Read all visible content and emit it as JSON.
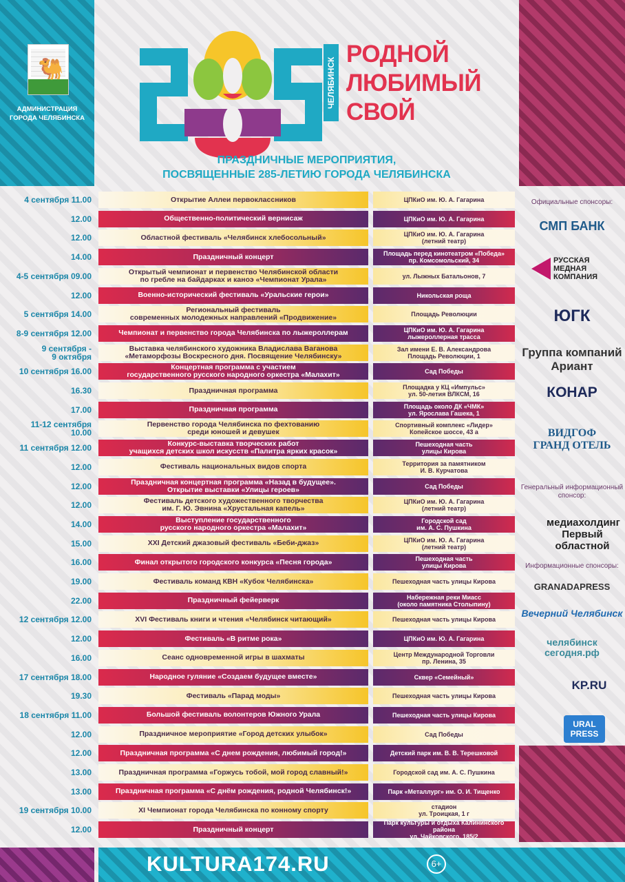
{
  "header": {
    "admin_label": "АДМИНИСТРАЦИЯ\nГОРОДА ЧЕЛЯБИНСКА",
    "logo_number": "285",
    "city_vertical": "ЧЕЛЯБИНСК",
    "slogan": [
      "РОДНОЙ",
      "ЛЮБИМЫЙ",
      "СВОЙ"
    ],
    "subtitle_line1": "ПРАЗДНИЧНЫЕ МЕРОПРИЯТИЯ,",
    "subtitle_line2": "ПОСВЯЩЕННЫЕ 285-ЛЕТИЮ ГОРОДА ЧЕЛЯБИНСКА"
  },
  "colors": {
    "cyan": "#1fa9c4",
    "crimson": "#da2a4c",
    "purple": "#5a2a6c",
    "yellow": "#f6c52a",
    "slogan_red": "#e2334f"
  },
  "events": [
    {
      "time": "4 сентября 11.00",
      "event": "Открытие Аллеи первоклассников",
      "venue": "ЦПКиО им. Ю. А. Гагарина"
    },
    {
      "time": "12.00",
      "event": "Общественно-политический вернисаж",
      "venue": "ЦПКиО им. Ю. А. Гагарина"
    },
    {
      "time": "12.00",
      "event": "Областной фестиваль «Челябинск хлебосольный»",
      "venue": "ЦПКиО им. Ю. А. Гагарина\n(летний театр)"
    },
    {
      "time": "14.00",
      "event": "Праздничный концерт",
      "venue": "Площадь перед кинотеатром «Победа»\nпр. Комсомольский, 34"
    },
    {
      "time": "4-5 сентября 09.00",
      "event": "Открытый чемпионат и первенство Челябинской области\nпо гребле на байдарках и каноэ «Чемпионат Урала»",
      "venue": "ул. Лыжных Батальонов, 7"
    },
    {
      "time": "12.00",
      "event": "Военно-исторический фестиваль «Уральские герои»",
      "venue": "Никольская роща"
    },
    {
      "time": "5 сентября 14.00",
      "event": "Региональный фестиваль\nсовременных молодежных направлений «Продвижение»",
      "venue": "Площадь Революции"
    },
    {
      "time": "8-9 сентября 12.00",
      "event": "Чемпионат и первенство города Челябинска по лыжероллерам",
      "venue": "ЦПКиО им. Ю. А. Гагарина\nлыжероллерная трасса"
    },
    {
      "time": "9 сентября -\n9 октября",
      "event": "Выставка челябинского художника Владислава Ваганова\n«Метаморфозы Воскресного дня. Посвящение Челябинску»",
      "venue": "Зал имени Е. В. Александрова\nПлощадь Революции, 1"
    },
    {
      "time": "10 сентября 16.00",
      "event": "Концертная программа с участием\nгосударственного русского народного оркестра «Малахит»",
      "venue": "Сад Победы"
    },
    {
      "time": "16.30",
      "event": "Праздничная программа",
      "venue": "Площадка у КЦ «Импульс»\nул. 50-летия ВЛКСМ, 16"
    },
    {
      "time": "17.00",
      "event": "Праздничная программа",
      "venue": "Площадь около ДК «ЧМК»\nул. Ярослава Гашека, 1"
    },
    {
      "time": "11-12 сентября\n10.00",
      "event": "Первенство города Челябинска по фехтованию\nсреди юношей и девушек",
      "venue": "Спортивный комплекс «Лидер»\nКопейское шоссе, 43 а"
    },
    {
      "time": "11 сентября 12.00",
      "event": "Конкурс-выставка творческих работ\nучащихся детских школ искусств «Палитра ярких красок»",
      "venue": "Пешеходная часть\nулицы Кирова"
    },
    {
      "time": "12.00",
      "event": "Фестиваль национальных видов спорта",
      "venue": "Территория за памятником\nИ. В. Курчатова"
    },
    {
      "time": "12.00",
      "event": "Праздничная концертная программа «Назад в будущее».\nОткрытие выставки «Улицы героев»",
      "venue": "Сад Победы"
    },
    {
      "time": "12.00",
      "event": "Фестиваль детского художественного творчества\nим. Г. Ю. Эвнина «Хрустальная капель»",
      "venue": "ЦПКиО им. Ю. А. Гагарина\n(летний театр)"
    },
    {
      "time": "14.00",
      "event": "Выступление государственного\nрусского народного оркестра «Малахит»",
      "venue": "Городской сад\nим. А. С. Пушкина"
    },
    {
      "time": "15.00",
      "event": "XXI Детский джазовый фестиваль «Беби-джаз»",
      "venue": "ЦПКиО им. Ю. А. Гагарина\n(летний театр)"
    },
    {
      "time": "16.00",
      "event": "Финал открытого городского конкурса «Песня города»",
      "venue": "Пешеходная часть\nулицы Кирова"
    },
    {
      "time": "19.00",
      "event": "Фестиваль команд КВН «Кубок Челябинска»",
      "venue": "Пешеходная часть улицы Кирова"
    },
    {
      "time": "22.00",
      "event": "Праздничный фейерверк",
      "venue": "Набережная реки Миасс\n(около памятника Столыпину)"
    },
    {
      "time": "12 сентября 12.00",
      "event": "XVI Фестиваль книги и чтения «Челябинск читающий»",
      "venue": "Пешеходная часть улицы Кирова"
    },
    {
      "time": "12.00",
      "event": "Фестиваль «В ритме рока»",
      "venue": "ЦПКиО им. Ю. А. Гагарина"
    },
    {
      "time": "16.00",
      "event": "Сеанс одновременной игры в шахматы",
      "venue": "Центр Международной Торговли\nпр. Ленина, 35"
    },
    {
      "time": "17 сентября 18.00",
      "event": "Народное гуляние «Создаем будущее вместе»",
      "venue": "Сквер «Семейный»"
    },
    {
      "time": "19.30",
      "event": "Фестиваль «Парад моды»",
      "venue": "Пешеходная часть улицы Кирова"
    },
    {
      "time": "18 сентября 11.00",
      "event": "Большой фестиваль волонтеров Южного Урала",
      "venue": "Пешеходная часть улицы Кирова"
    },
    {
      "time": "12.00",
      "event": "Праздничное мероприятие «Город детских улыбок»",
      "venue": "Сад Победы"
    },
    {
      "time": "12.00",
      "event": "Праздничная программа «С днем рождения, любимый город!»",
      "venue": "Детский парк им. В. В. Терешковой"
    },
    {
      "time": "13.00",
      "event": "Праздничная программа «Горжусь тобой, мой город славный!»",
      "venue": "Городской сад им. А. С. Пушкина"
    },
    {
      "time": "13.00",
      "event": "Праздничная программа «С днём рождения, родной Челябинск!»",
      "venue": "Парк «Металлург» им. О. И. Тищенко"
    },
    {
      "time": "19 сентября 10.00",
      "event": "XI Чемпионат города Челябинска по конному спорту",
      "venue": "стадион\nул. Троицкая, 1 г"
    },
    {
      "time": "12.00",
      "event": "Праздничный концерт",
      "venue": "Парк культуры и отдыха Калининского района\nул. Чайковского, 185/2"
    }
  ],
  "sponsors": {
    "official_heading": "Официальные спонсоры:",
    "official": [
      "СМП БАНК",
      "РУССКАЯ МЕДНАЯ КОМПАНИЯ",
      "ЮГК",
      "Группа компаний Ариант",
      "КОНАР",
      "ВИДГОФ ГРАНД ОТЕЛЬ"
    ],
    "general_heading": "Генеральный информационный спонсор:",
    "general": "медиахолдинг Первый областной",
    "info_heading": "Информационные спонсоры:",
    "info": [
      "GRANADAPRESS",
      "Вечерний Челябинск",
      "челябинск сегодня.рф",
      "KP.RU",
      "URAL PRESS"
    ]
  },
  "footer": {
    "site": "KULTURA174.RU",
    "age_rating": "6+"
  }
}
